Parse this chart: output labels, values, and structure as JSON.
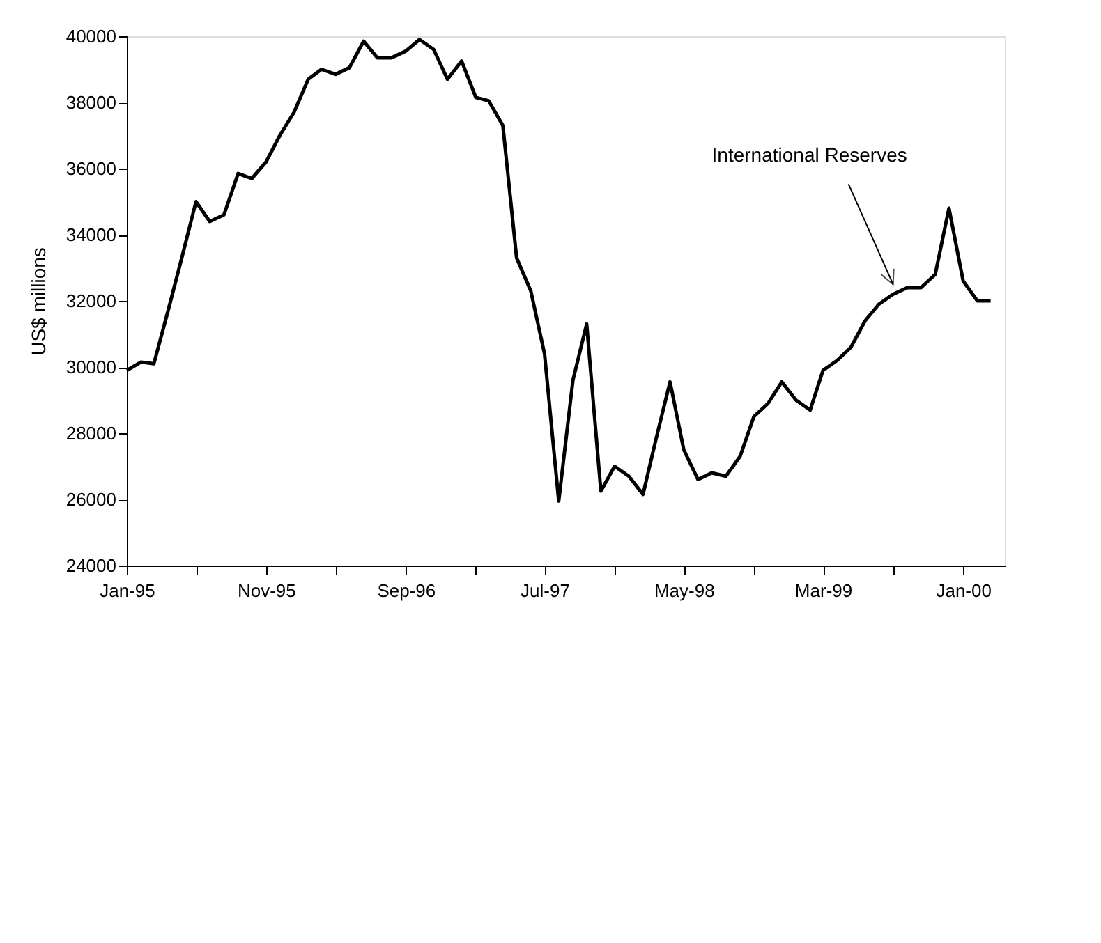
{
  "chart_data": {
    "type": "line",
    "ylabel": "US$ millions",
    "x": [
      "1995-01",
      "1995-02",
      "1995-03",
      "1995-04",
      "1995-05",
      "1995-06",
      "1995-07",
      "1995-08",
      "1995-09",
      "1995-10",
      "1995-11",
      "1995-12",
      "1996-01",
      "1996-02",
      "1996-03",
      "1996-04",
      "1996-05",
      "1996-06",
      "1996-07",
      "1996-08",
      "1996-09",
      "1996-10",
      "1996-11",
      "1996-12",
      "1997-01",
      "1997-02",
      "1997-03",
      "1997-04",
      "1997-05",
      "1997-06",
      "1997-07",
      "1997-08",
      "1997-09",
      "1997-10",
      "1997-11",
      "1997-12",
      "1998-01",
      "1998-02",
      "1998-03",
      "1998-04",
      "1998-05",
      "1998-06",
      "1998-07",
      "1998-08",
      "1998-09",
      "1998-10",
      "1998-11",
      "1998-12",
      "1999-01",
      "1999-02",
      "1999-03",
      "1999-04",
      "1999-05",
      "1999-06",
      "1999-07",
      "1999-08",
      "1999-09",
      "1999-10",
      "1999-11",
      "1999-12",
      "2000-01",
      "2000-02",
      "2000-03"
    ],
    "series": [
      {
        "color": "#000000",
        "values": [
          29900,
          30150,
          30100,
          31700,
          33300,
          35000,
          34400,
          34600,
          35850,
          35700,
          36200,
          37000,
          37700,
          38700,
          39000,
          38850,
          39050,
          39850,
          39350,
          39350,
          39550,
          39900,
          39600,
          38700,
          39250,
          38150,
          38050,
          37300,
          33300,
          32300,
          30400,
          25950,
          29600,
          31300,
          26250,
          27000,
          26700,
          26150,
          27800,
          29550,
          27500,
          26600,
          26800,
          26700,
          27300,
          28500,
          28900,
          29550,
          29000,
          28700,
          29900,
          30200,
          30600,
          31400,
          31900,
          32200,
          32400,
          32400,
          32800,
          34800,
          32600,
          32000,
          32000
        ]
      }
    ],
    "xlim": [
      "1995-01",
      "2000-04"
    ],
    "xticks": [
      {
        "value": "1995-01",
        "label": "Jan-95"
      },
      {
        "value": "1995-06",
        "label": null
      },
      {
        "value": "1995-11",
        "label": "Nov-95"
      },
      {
        "value": "1996-04",
        "label": null
      },
      {
        "value": "1996-09",
        "label": "Sep-96"
      },
      {
        "value": "1997-02",
        "label": null
      },
      {
        "value": "1997-07",
        "label": "Jul-97"
      },
      {
        "value": "1997-12",
        "label": null
      },
      {
        "value": "1998-05",
        "label": "May-98"
      },
      {
        "value": "1998-10",
        "label": null
      },
      {
        "value": "1999-03",
        "label": "Mar-99"
      },
      {
        "value": "1999-08",
        "label": null
      },
      {
        "value": "2000-01",
        "label": "Jan-00"
      }
    ],
    "ylim": [
      24000,
      40000
    ],
    "yticks": [
      24000,
      26000,
      28000,
      30000,
      32000,
      34000,
      36000,
      38000,
      40000
    ],
    "grid": false,
    "marker": "none",
    "line_style": "solid",
    "annotations": [
      {
        "text": "International Reserves",
        "x": "1999-08",
        "y": 32500
      }
    ]
  }
}
